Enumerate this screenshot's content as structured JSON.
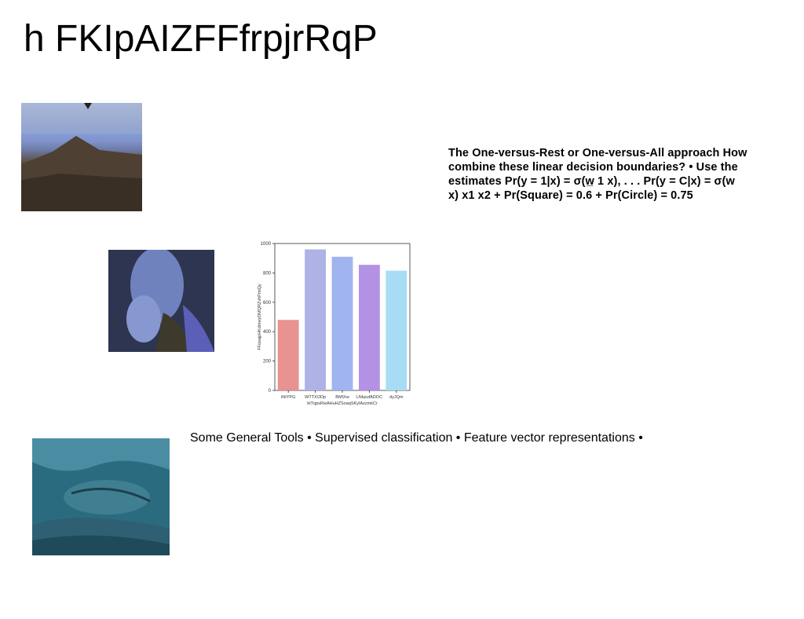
{
  "slide": {
    "title": "h FKIpAIZFFfrpjrRqP",
    "paragraph_lines": [
      "The One-versus-Rest or One-versus-All approach How",
      "combine these linear decision boundaries? • Use the",
      "estimates Pr(y = 1|x) = σ(w̲ 1 x), . . . Pr(y = C|x) = σ(w",
      "x) x1 x2 + Pr(Square) = 0.6 + Pr(Circle) = 0.75"
    ],
    "tools_text": "Some General Tools • Supervised classification • Feature vector representations •"
  },
  "chart_data": {
    "type": "bar",
    "categories": [
      "iNIYPG",
      "WTTXODp",
      "BMIXw",
      "LNkpufADOC",
      "dyJQm"
    ],
    "values": [
      480,
      960,
      910,
      855,
      815
    ],
    "colors": [
      "#e89292",
      "#aeb3e6",
      "#a0b4ef",
      "#b392e6",
      "#a8dcf5"
    ],
    "xlabel": "bITqpsRwAHuHZSoaqSKyIAzzmkCr",
    "ylabel": "FFosajpHKdmwyDMQRZvhPmiQy",
    "ylim": [
      0,
      1000
    ],
    "yticks": [
      0,
      200,
      400,
      600,
      800,
      1000
    ]
  }
}
